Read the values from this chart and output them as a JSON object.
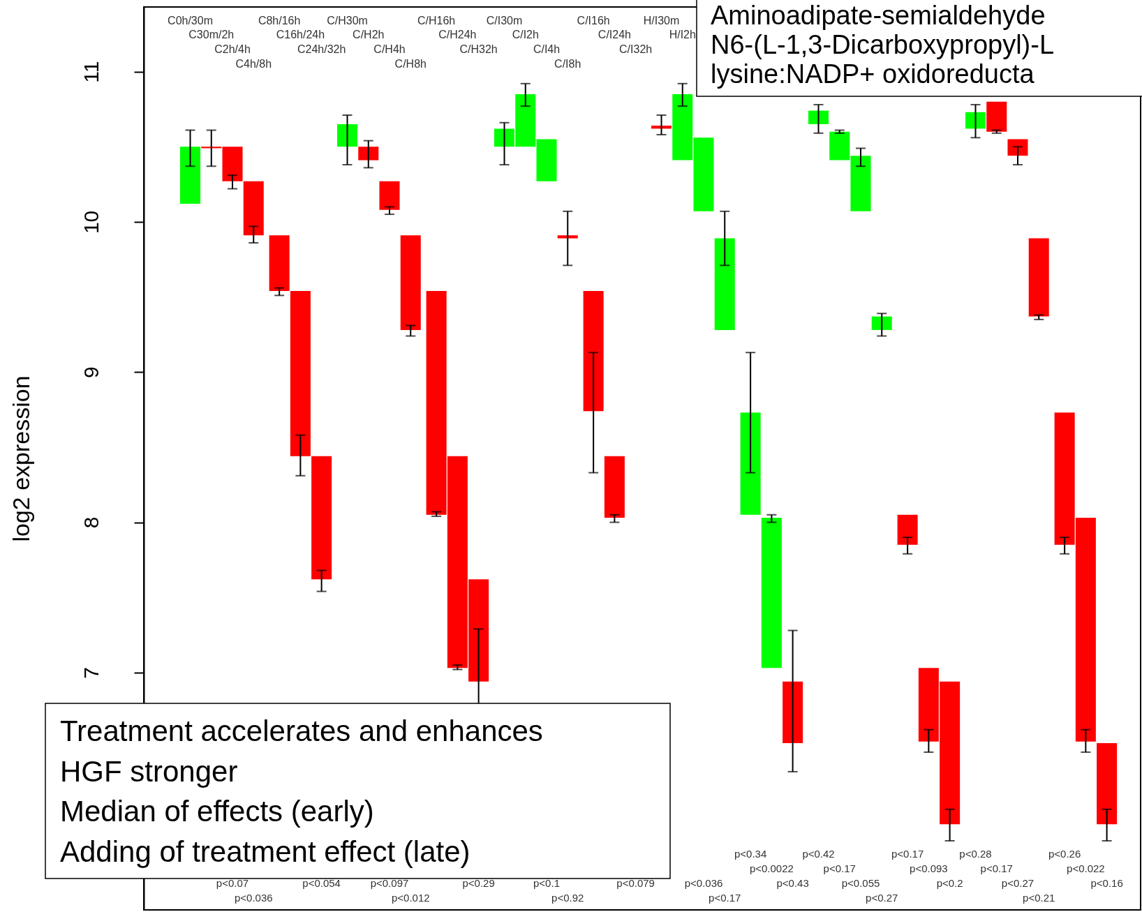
{
  "chart_data": {
    "type": "bar",
    "title": "Aminoadipate-semialdehyde\nN6-(L-1,3-Dicarboxypropyl)-L\nlysine:NADP+ oxidoreducta",
    "ylabel": "log2 expression",
    "categories": [
      "C0h/30m",
      "C30m/2h",
      "C2h/4h",
      "C4h/8h",
      "C8h/16h",
      "C16h/24h",
      "C24h/32h",
      "C/H30m",
      "C/H2h",
      "C/H4h",
      "C/H8h",
      "C/H16h",
      "C/H24h",
      "C/H32h",
      "C/I30m",
      "C/I2h",
      "C/I4h",
      "C/I8h",
      "C/I16h",
      "C/I24h",
      "C/I32h",
      "H/I30m",
      "H/I2h",
      null,
      null,
      null,
      null,
      null,
      null,
      null,
      null,
      null,
      null,
      null,
      null,
      null,
      null,
      null,
      null,
      null,
      null,
      null
    ],
    "base": [
      10.12,
      10.5,
      10.5,
      10.27,
      9.91,
      9.54,
      8.44,
      10.5,
      10.5,
      10.27,
      9.91,
      9.54,
      8.44,
      7.62,
      10.5,
      10.5,
      10.27,
      9.91,
      9.54,
      8.44,
      null,
      10.64,
      10.41,
      10.07,
      9.28,
      8.05,
      7.03,
      6.94,
      10.65,
      10.41,
      10.07,
      9.28,
      8.05,
      7.03,
      6.94,
      10.62,
      10.8,
      10.55,
      9.89,
      8.73,
      8.03,
      6.53
    ],
    "values": [
      0.38,
      -0.01,
      -0.23,
      -0.36,
      -0.37,
      -1.1,
      -0.82,
      0.15,
      -0.09,
      -0.19,
      -0.63,
      -1.49,
      -1.41,
      -0.68,
      0.12,
      0.35,
      0.28,
      -0.02,
      -0.8,
      -0.41,
      null,
      -0.02,
      0.44,
      0.49,
      0.61,
      0.68,
      1.0,
      -0.41,
      0.09,
      0.19,
      0.37,
      0.09,
      -0.2,
      -0.49,
      -0.95,
      0.11,
      -0.2,
      -0.11,
      -0.52,
      -0.88,
      -1.49,
      -0.54
    ],
    "colors": [
      "#00ff00",
      "#ff0000",
      "#ff0000",
      "#ff0000",
      "#ff0000",
      "#ff0000",
      "#ff0000",
      "#00ff00",
      "#ff0000",
      "#ff0000",
      "#ff0000",
      "#ff0000",
      "#ff0000",
      "#ff0000",
      "#00ff00",
      "#00ff00",
      "#00ff00",
      "#ff0000",
      "#ff0000",
      "#ff0000",
      "#ff0000",
      "#ff0000",
      "#00ff00",
      "#00ff00",
      "#00ff00",
      "#00ff00",
      "#00ff00",
      "#ff0000",
      "#00ff00",
      "#00ff00",
      "#00ff00",
      "#00ff00",
      "#ff0000",
      "#ff0000",
      "#ff0000",
      "#00ff00",
      "#ff0000",
      "#ff0000",
      "#ff0000",
      "#ff0000",
      "#ff0000",
      "#ff0000"
    ],
    "errors": [
      [
        10.37,
        10.61
      ],
      [
        10.37,
        10.61
      ],
      [
        10.22,
        10.31
      ],
      [
        9.86,
        9.97
      ],
      [
        9.51,
        9.56
      ],
      [
        8.31,
        8.58
      ],
      [
        7.54,
        7.68
      ],
      [
        10.38,
        10.71
      ],
      [
        10.36,
        10.54
      ],
      [
        10.05,
        10.1
      ],
      [
        9.24,
        9.31
      ],
      [
        8.04,
        8.07
      ],
      [
        7.02,
        7.05
      ],
      [
        6.59,
        7.29
      ],
      [
        10.38,
        10.66
      ],
      [
        10.77,
        10.92
      ],
      null,
      [
        9.71,
        10.07
      ],
      [
        8.33,
        9.13
      ],
      [
        8.0,
        8.05
      ],
      null,
      [
        10.58,
        10.71
      ],
      [
        10.77,
        10.92
      ],
      null,
      [
        9.71,
        10.07
      ],
      [
        8.33,
        9.13
      ],
      [
        8.0,
        8.05
      ],
      [
        6.34,
        7.28
      ],
      [
        10.59,
        10.78
      ],
      [
        10.59,
        10.61
      ],
      [
        10.37,
        10.49
      ],
      [
        9.24,
        9.39
      ],
      [
        7.79,
        7.9
      ],
      [
        6.47,
        6.62
      ],
      [
        5.88,
        6.09
      ],
      [
        10.56,
        10.78
      ],
      [
        10.59,
        10.61
      ],
      [
        10.38,
        10.5
      ],
      [
        9.35,
        9.38
      ],
      [
        7.79,
        7.9
      ],
      [
        6.47,
        6.62
      ],
      [
        5.88,
        6.09
      ]
    ],
    "ylim": [
      5.42,
      11.43
    ],
    "yticks": [
      7,
      8,
      9,
      10,
      11
    ],
    "annotations": [
      "Treatment accelerates and enhances",
      "HGF stronger",
      "Median of effects (early)",
      "Adding of treatment effect (late)",
      "p<0.07",
      "p<0.036",
      "p<0.054",
      "p<0.097",
      "p<0.012",
      "p<0.29",
      "p<0.1",
      "p<0.92",
      "p<0.079",
      "p<0.036",
      "p<0.17",
      "p<0.34",
      "p<0.0022",
      "p<0.43",
      "p<0.42",
      "p<0.17",
      "p<0.055",
      "p<0.27",
      "p<0.17",
      "p<0.093",
      "p<0.2",
      "p<0.28",
      "p<0.17",
      "p<0.27",
      "p<0.21",
      "p<0.26",
      "p<0.022",
      "p<0.16"
    ]
  }
}
